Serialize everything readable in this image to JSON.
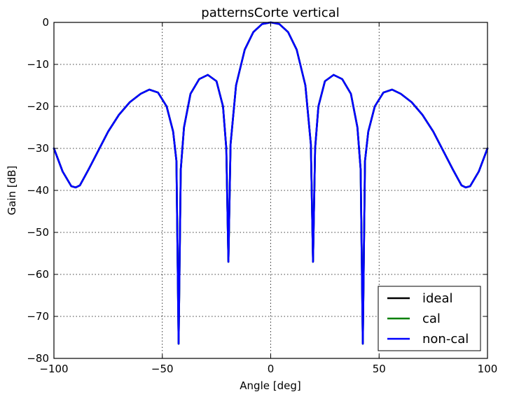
{
  "chart_data": {
    "type": "line",
    "title": "patternsCorte vertical",
    "xlabel": "Angle [deg]",
    "ylabel": "Gain [dB]",
    "xlim": [
      -100,
      100
    ],
    "ylim": [
      -80,
      0
    ],
    "xticks": [
      -100,
      -50,
      0,
      50,
      100
    ],
    "yticks": [
      0,
      -10,
      -20,
      -30,
      -40,
      -50,
      -60,
      -70,
      -80
    ],
    "xtick_labels": [
      "−100",
      "−50",
      "0",
      "50",
      "100"
    ],
    "ytick_labels": [
      "0",
      "−10",
      "−20",
      "−30",
      "−40",
      "−50",
      "−60",
      "−70",
      "−80"
    ],
    "grid": true,
    "legend_position": "bottom-right",
    "series": [
      {
        "name": "ideal",
        "color": "#000000",
        "x": [
          -100,
          -96,
          -92,
          -90,
          -88,
          -84,
          -80,
          -75,
          -70,
          -65,
          -60,
          -56,
          -52,
          -48,
          -45,
          -43.5,
          -42.5,
          -41.5,
          -40,
          -37,
          -33,
          -29,
          -25,
          -22,
          -20.5,
          -19.5,
          -18.5,
          -16,
          -12,
          -8,
          -4,
          0,
          4,
          8,
          12,
          16,
          18.5,
          19.5,
          20.5,
          22,
          25,
          29,
          33,
          37,
          40,
          41.5,
          42.5,
          43.5,
          45,
          48,
          52,
          56,
          60,
          65,
          70,
          75,
          80,
          84,
          88,
          90,
          92,
          96,
          100
        ],
        "y": [
          -30,
          -35.5,
          -39,
          -39.3,
          -38.8,
          -35,
          -31,
          -26,
          -22,
          -19,
          -17,
          -16,
          -16.7,
          -20,
          -26,
          -33,
          -76.5,
          -35,
          -25,
          -17,
          -13.5,
          -12.5,
          -14,
          -20,
          -30,
          -57,
          -29,
          -15,
          -6.5,
          -2.3,
          -0.4,
          0,
          -0.4,
          -2.3,
          -6.5,
          -15,
          -29,
          -57,
          -30,
          -20,
          -14,
          -12.5,
          -13.5,
          -17,
          -25,
          -35,
          -76.5,
          -33,
          -26,
          -20,
          -16.7,
          -16,
          -17,
          -19,
          -22,
          -26,
          -31,
          -35,
          -38.8,
          -39.3,
          -39,
          -35.5,
          -30
        ]
      },
      {
        "name": "cal",
        "color": "#008000",
        "x": [
          -100,
          -96,
          -92,
          -90,
          -88,
          -84,
          -80,
          -75,
          -70,
          -65,
          -60,
          -56,
          -52,
          -48,
          -45,
          -43.5,
          -42.5,
          -41.5,
          -40,
          -37,
          -33,
          -29,
          -25,
          -22,
          -20.5,
          -19.5,
          -18.5,
          -16,
          -12,
          -8,
          -4,
          0,
          4,
          8,
          12,
          16,
          18.5,
          19.5,
          20.5,
          22,
          25,
          29,
          33,
          37,
          40,
          41.5,
          42.5,
          43.5,
          45,
          48,
          52,
          56,
          60,
          65,
          70,
          75,
          80,
          84,
          88,
          90,
          92,
          96,
          100
        ],
        "y": [
          -30,
          -35.5,
          -39,
          -39.3,
          -38.8,
          -35,
          -31,
          -26,
          -22,
          -19,
          -17,
          -16,
          -16.7,
          -20,
          -26,
          -33,
          -76.5,
          -35,
          -25,
          -17,
          -13.5,
          -12.5,
          -14,
          -20,
          -30,
          -57,
          -29,
          -15,
          -6.5,
          -2.3,
          -0.4,
          0,
          -0.4,
          -2.3,
          -6.5,
          -15,
          -29,
          -57,
          -30,
          -20,
          -14,
          -12.5,
          -13.5,
          -17,
          -25,
          -35,
          -76.5,
          -33,
          -26,
          -20,
          -16.7,
          -16,
          -17,
          -19,
          -22,
          -26,
          -31,
          -35,
          -38.8,
          -39.3,
          -39,
          -35.5,
          -30
        ]
      },
      {
        "name": "non-cal",
        "color": "#0000ff",
        "x": [
          -100,
          -96,
          -92,
          -90,
          -88,
          -84,
          -80,
          -75,
          -70,
          -65,
          -60,
          -56,
          -52,
          -48,
          -45,
          -43.5,
          -42.5,
          -41.5,
          -40,
          -37,
          -33,
          -29,
          -25,
          -22,
          -20.5,
          -19.5,
          -18.5,
          -16,
          -12,
          -8,
          -4,
          0,
          4,
          8,
          12,
          16,
          18.5,
          19.5,
          20.5,
          22,
          25,
          29,
          33,
          37,
          40,
          41.5,
          42.5,
          43.5,
          45,
          48,
          52,
          56,
          60,
          65,
          70,
          75,
          80,
          84,
          88,
          90,
          92,
          96,
          100
        ],
        "y": [
          -30,
          -35.5,
          -39,
          -39.3,
          -38.8,
          -35,
          -31,
          -26,
          -22,
          -19,
          -17,
          -16,
          -16.7,
          -20,
          -26,
          -33,
          -76.5,
          -35,
          -25,
          -17,
          -13.5,
          -12.5,
          -14,
          -20,
          -30,
          -57,
          -29,
          -15,
          -6.5,
          -2.3,
          -0.4,
          0,
          -0.4,
          -2.3,
          -6.5,
          -15,
          -29,
          -57,
          -30,
          -20,
          -14,
          -12.5,
          -13.5,
          -17,
          -25,
          -35,
          -76.5,
          -33,
          -26,
          -20,
          -16.7,
          -16,
          -17,
          -19,
          -22,
          -26,
          -31,
          -35,
          -38.8,
          -39.3,
          -39,
          -35.5,
          -30
        ]
      }
    ]
  }
}
